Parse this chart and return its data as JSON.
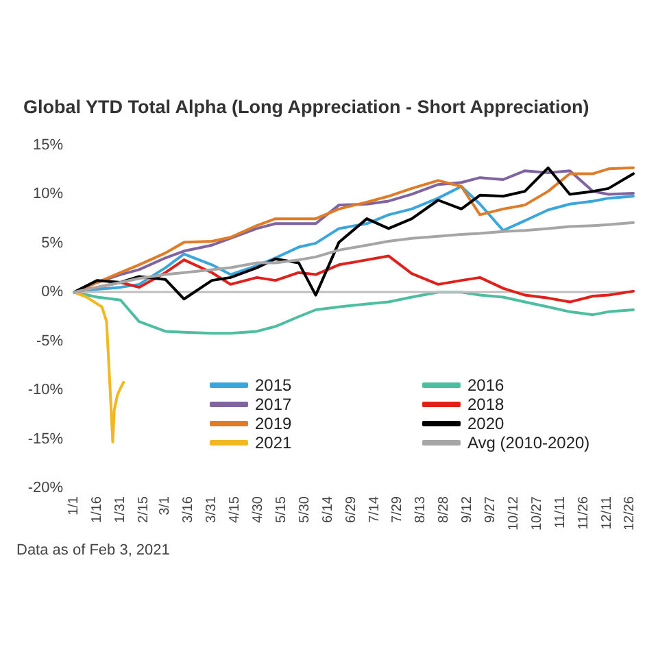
{
  "chart_data": {
    "type": "line",
    "title": "Global YTD Total Alpha (Long Appreciation - Short Appreciation)",
    "annotations": [
      "Data as of Feb 3, 2021"
    ],
    "x": [
      "--01-01",
      "--01-16",
      "--01-31",
      "--02-12",
      "--03-01",
      "--03-13",
      "--03-31",
      "--04-12",
      "--04-29",
      "--05-11",
      "--05-26",
      "--06-06",
      "--06-21",
      "--07-09",
      "--07-23",
      "--08-07",
      "--08-24",
      "--09-08",
      "--09-20",
      "--10-05",
      "--10-19",
      "--11-03",
      "--11-17",
      "--12-02",
      "--12-12",
      "--12-28"
    ],
    "series": [
      {
        "name": "2015",
        "color": "#3aa6dc",
        "values": [
          0,
          0.3,
          0.5,
          0.8,
          2.5,
          3.9,
          2.8,
          1.8,
          2.7,
          3.5,
          4.6,
          5.0,
          6.5,
          7.0,
          7.9,
          8.5,
          9.6,
          10.8,
          9.0,
          6.3,
          7.3,
          8.4,
          9.0,
          9.3,
          9.6,
          9.8
        ]
      },
      {
        "name": "2016",
        "color": "#4dbfa0",
        "values": [
          0,
          -0.5,
          -0.8,
          -3.0,
          -4.0,
          -4.1,
          -4.2,
          -4.2,
          -4.0,
          -3.5,
          -2.5,
          -1.8,
          -1.5,
          -1.2,
          -1.0,
          -0.5,
          0.0,
          0.0,
          -0.3,
          -0.5,
          -1.0,
          -1.5,
          -2.0,
          -2.3,
          -2.0,
          -1.8
        ]
      },
      {
        "name": "2017",
        "color": "#8064a2",
        "values": [
          0,
          1.0,
          1.8,
          2.3,
          3.5,
          4.2,
          4.8,
          5.5,
          6.5,
          7.0,
          7.0,
          7.0,
          8.9,
          9.0,
          9.3,
          10.0,
          11.0,
          11.2,
          11.7,
          11.5,
          12.4,
          12.2,
          12.4,
          10.3,
          10.0,
          10.1
        ]
      },
      {
        "name": "2018",
        "color": "#e0201b",
        "values": [
          0,
          0.5,
          1.0,
          0.5,
          2.0,
          3.3,
          2.0,
          0.8,
          1.5,
          1.2,
          2.0,
          1.8,
          2.8,
          3.3,
          3.7,
          1.9,
          0.8,
          1.2,
          1.5,
          0.4,
          -0.3,
          -0.6,
          -1.0,
          -0.4,
          -0.3,
          0.1
        ]
      },
      {
        "name": "2019",
        "color": "#e07b28",
        "values": [
          0,
          1.0,
          2.0,
          2.8,
          4.0,
          5.1,
          5.2,
          5.6,
          6.8,
          7.5,
          7.5,
          7.5,
          8.5,
          9.2,
          9.8,
          10.6,
          11.4,
          10.8,
          7.9,
          8.5,
          8.9,
          10.3,
          12.1,
          12.1,
          12.6,
          12.7
        ]
      },
      {
        "name": "2020",
        "color": "#000000",
        "values": [
          0,
          1.2,
          1.0,
          1.6,
          1.3,
          -0.7,
          1.2,
          1.5,
          2.5,
          3.4,
          3.0,
          -0.3,
          5.1,
          7.5,
          6.5,
          7.5,
          9.4,
          8.5,
          9.9,
          9.8,
          10.3,
          12.7,
          10.0,
          10.3,
          10.6,
          12.1
        ]
      },
      {
        "name": "2021",
        "color": "#f2b823",
        "x": [
          "--01-01",
          "--01-09",
          "--01-19",
          "--01-22",
          "--01-24",
          "--01-26",
          "--01-27",
          "--01-29",
          "--01-31",
          "--02-02"
        ],
        "values": [
          0,
          -0.5,
          -1.5,
          -3,
          -9,
          -15.3,
          -12,
          -10.5,
          -9.8,
          -9.2
        ]
      },
      {
        "name": "Avg (2010-2020)",
        "color": "#a6a6a6",
        "values": [
          0,
          0.5,
          1.0,
          1.4,
          1.8,
          2.0,
          2.3,
          2.5,
          3.0,
          3.0,
          3.3,
          3.6,
          4.3,
          4.8,
          5.2,
          5.5,
          5.7,
          5.9,
          6.0,
          6.2,
          6.3,
          6.5,
          6.7,
          6.8,
          6.9,
          7.1
        ]
      }
    ],
    "xlim": [
      "--01-01",
      "--12-28"
    ],
    "xticks": [
      {
        "value": "--01-01",
        "label": "1/1"
      },
      {
        "value": "--01-16",
        "label": "1/16"
      },
      {
        "value": "--01-31",
        "label": "1/31"
      },
      {
        "value": "--02-15",
        "label": "2/15"
      },
      {
        "value": "--03-01",
        "label": "3/1"
      },
      {
        "value": "--03-16",
        "label": "3/16"
      },
      {
        "value": "--03-31",
        "label": "3/31"
      },
      {
        "value": "--04-15",
        "label": "4/15"
      },
      {
        "value": "--04-30",
        "label": "4/30"
      },
      {
        "value": "--05-15",
        "label": "5/15"
      },
      {
        "value": "--05-30",
        "label": "5/30"
      },
      {
        "value": "--06-14",
        "label": "6/14"
      },
      {
        "value": "--06-29",
        "label": "6/29"
      },
      {
        "value": "--07-14",
        "label": "7/14"
      },
      {
        "value": "--07-29",
        "label": "7/29"
      },
      {
        "value": "--08-13",
        "label": "8/13"
      },
      {
        "value": "--08-28",
        "label": "8/28"
      },
      {
        "value": "--09-12",
        "label": "9/12"
      },
      {
        "value": "--09-27",
        "label": "9/27"
      },
      {
        "value": "--10-12",
        "label": "10/12"
      },
      {
        "value": "--10-27",
        "label": "10/27"
      },
      {
        "value": "--11-11",
        "label": "11/11"
      },
      {
        "value": "--11-26",
        "label": "11/26"
      },
      {
        "value": "--12-11",
        "label": "12/11"
      },
      {
        "value": "--12-26",
        "label": "12/26"
      }
    ],
    "ylim": [
      -20,
      15
    ],
    "yticks": [
      {
        "value": -20,
        "label": "-20%"
      },
      {
        "value": -15,
        "label": "-15%"
      },
      {
        "value": -10,
        "label": "-10%"
      },
      {
        "value": -5,
        "label": "-5%"
      },
      {
        "value": 0,
        "label": "0%"
      },
      {
        "value": 5,
        "label": "5%"
      },
      {
        "value": 10,
        "label": "10%"
      },
      {
        "value": 15,
        "label": "15%"
      }
    ],
    "ref_lines": [
      {
        "axis": "y",
        "value": 0,
        "color": "#bfbfbf"
      }
    ],
    "grid": false,
    "legend": "bottom"
  }
}
